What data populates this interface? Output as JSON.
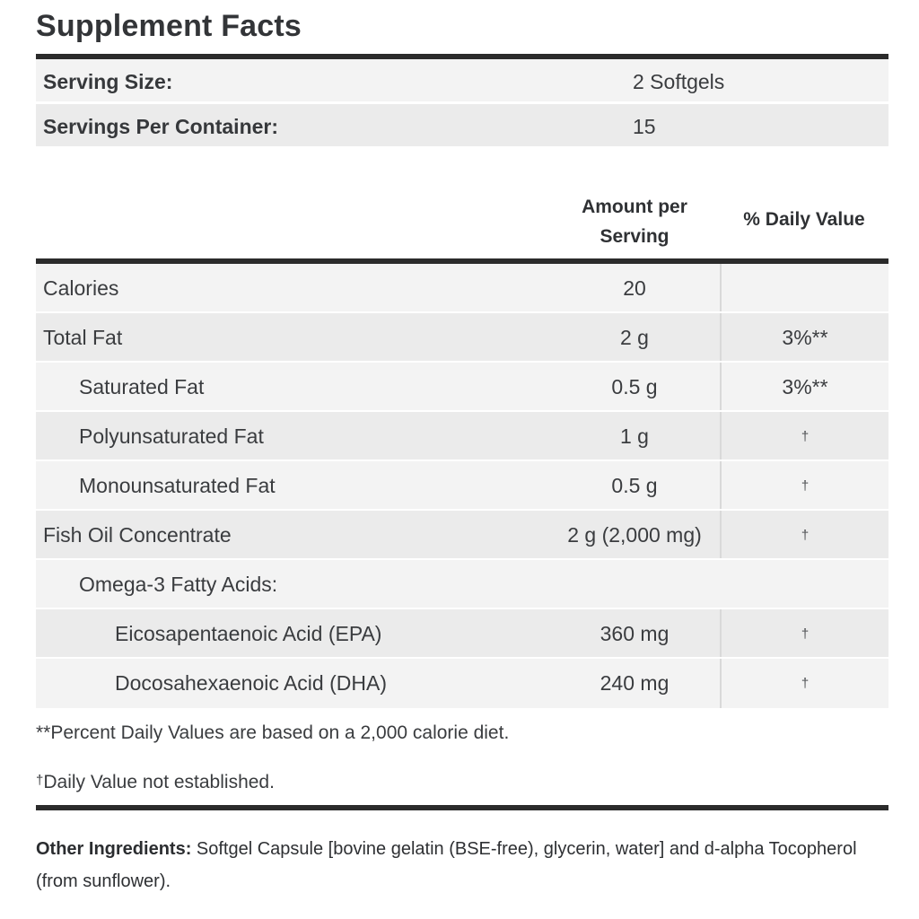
{
  "title": "Supplement Facts",
  "serving_rows": [
    {
      "label": "Serving Size:",
      "value": "2 Softgels"
    },
    {
      "label": "Servings Per Container:",
      "value": "15"
    }
  ],
  "table": {
    "amount_header_line1": "Amount per",
    "amount_header_line2": "Serving",
    "dv_header": "% Daily Value",
    "rows": [
      {
        "label": "Calories",
        "amount": "20",
        "dv": "",
        "indent": 0
      },
      {
        "label": "Total Fat",
        "amount": "2 g",
        "dv": "3%**",
        "indent": 0
      },
      {
        "label": "Saturated Fat",
        "amount": "0.5 g",
        "dv": "3%**",
        "indent": 1
      },
      {
        "label": "Polyunsaturated Fat",
        "amount": "1 g",
        "dv": "†",
        "indent": 1
      },
      {
        "label": "Monounsaturated Fat",
        "amount": "0.5 g",
        "dv": "†",
        "indent": 1
      },
      {
        "label": "Fish Oil Concentrate",
        "amount": "2 g (2,000 mg)",
        "dv": "†",
        "indent": 0
      },
      {
        "label": "Omega-3 Fatty Acids:",
        "amount": "",
        "dv": "",
        "indent": 1
      },
      {
        "label": "Eicosapentaenoic Acid (EPA)",
        "amount": "360 mg",
        "dv": "†",
        "indent": 2
      },
      {
        "label": "Docosahexaenoic Acid (DHA)",
        "amount": "240 mg",
        "dv": "†",
        "indent": 2
      }
    ]
  },
  "footnotes": [
    {
      "marker": "**",
      "text": "Percent Daily Values are based on a 2,000 calorie diet."
    },
    {
      "marker": "†",
      "text": "Daily Value not established."
    }
  ],
  "other_ingredients": {
    "label": "Other Ingredients:",
    "text": " Softgel Capsule [bovine gelatin (BSE-free), glycerin, water] and d-alpha Tocopherol (from sunflower)."
  },
  "colors": {
    "rule": "#2b2b2b",
    "row_light": "#f3f3f3",
    "row_dark": "#ebebeb",
    "column_divider": "#d9d9d9",
    "text": "#3a3c3f"
  }
}
